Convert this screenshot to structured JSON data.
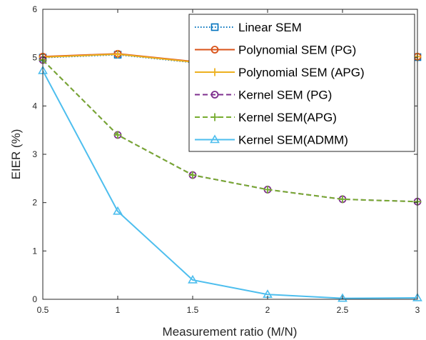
{
  "chart_data": {
    "type": "line",
    "title": "",
    "xlabel": "Measurement ratio (M/N)",
    "ylabel": "EIER (%)",
    "xlim": [
      0.5,
      3
    ],
    "ylim": [
      0,
      6
    ],
    "x": [
      0.5,
      1,
      1.5,
      2,
      2.5,
      3
    ],
    "xticks": [
      "0.5",
      "1",
      "1.5",
      "2",
      "2.5",
      "3"
    ],
    "yticks": [
      "0",
      "1",
      "2",
      "3",
      "4",
      "5",
      "6"
    ],
    "grid": false,
    "legend_position": "top-right",
    "series": [
      {
        "name": "Linear SEM",
        "values": [
          5.0,
          5.06,
          4.9,
          4.98,
          4.98,
          5.01
        ],
        "color": "#0072BD",
        "dash": "dotted",
        "marker": "square"
      },
      {
        "name": "Polynomial SEM (PG)",
        "values": [
          5.02,
          5.08,
          4.92,
          5.0,
          5.0,
          5.02
        ],
        "color": "#D95319",
        "dash": "solid",
        "marker": "circle"
      },
      {
        "name": "Polynomial SEM (APG)",
        "values": [
          5.01,
          5.07,
          4.91,
          4.99,
          4.99,
          5.02
        ],
        "color": "#EDB120",
        "dash": "solid",
        "marker": "plus"
      },
      {
        "name": "Kernel SEM (PG)",
        "values": [
          4.95,
          3.4,
          2.57,
          2.27,
          2.07,
          2.02
        ],
        "color": "#7E2F8E",
        "dash": "dashed",
        "marker": "circle"
      },
      {
        "name": "Kernel SEM(APG)",
        "values": [
          4.95,
          3.4,
          2.57,
          2.27,
          2.07,
          2.02
        ],
        "color": "#77AC30",
        "dash": "dashed",
        "marker": "plus"
      },
      {
        "name": "Kernel SEM(ADMM)",
        "values": [
          4.73,
          1.82,
          0.4,
          0.1,
          0.02,
          0.03
        ],
        "color": "#4DBEEE",
        "dash": "solid",
        "marker": "triangle"
      }
    ]
  }
}
